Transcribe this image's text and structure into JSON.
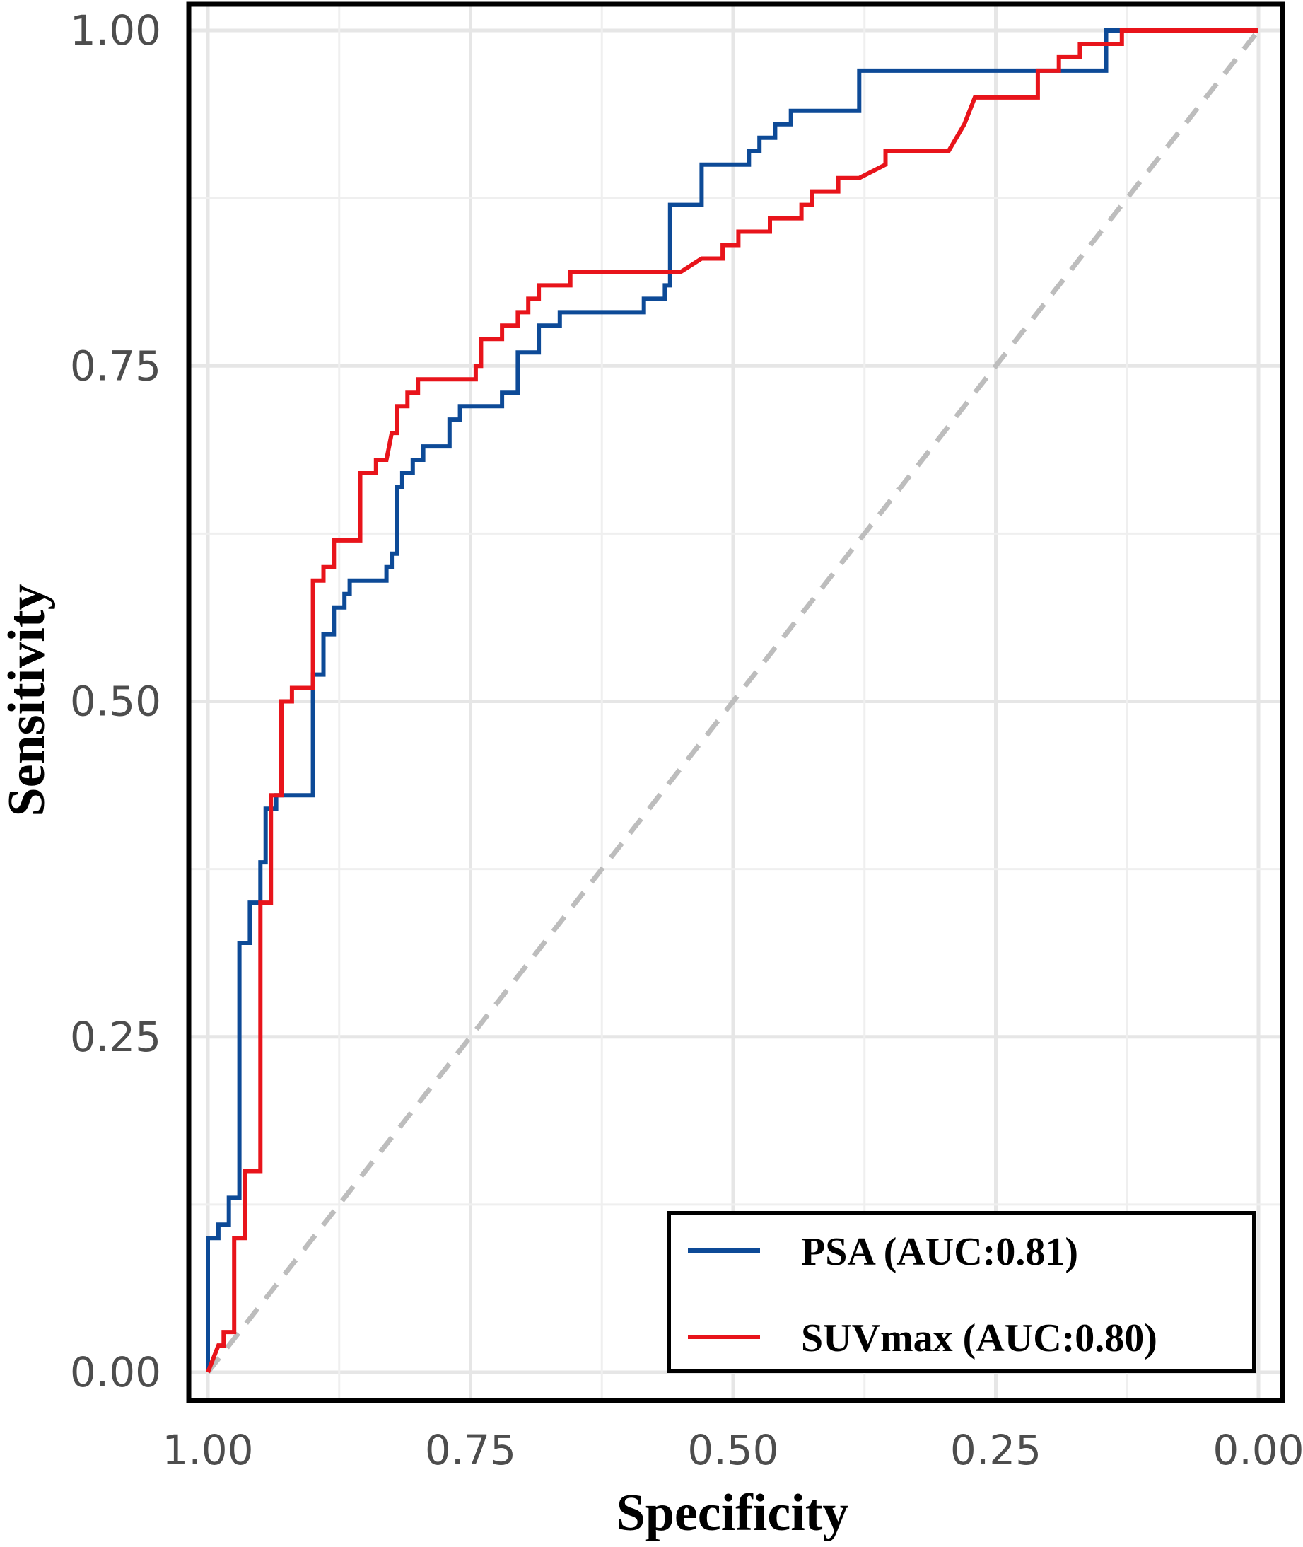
{
  "chart_data": {
    "type": "line",
    "title": "",
    "xlabel": "Specificity",
    "ylabel": "Sensitivity",
    "xlim": [
      1.0,
      0.0
    ],
    "ylim": [
      0.0,
      1.0
    ],
    "x_reversed": true,
    "grid": true,
    "x_ticks": [
      1.0,
      0.75,
      0.5,
      0.25,
      0.0
    ],
    "x_tick_labels": [
      "1.00",
      "0.75",
      "0.50",
      "0.25",
      "0.00"
    ],
    "y_ticks": [
      0.0,
      0.25,
      0.5,
      0.75,
      1.0
    ],
    "y_tick_labels": [
      "0.00",
      "0.25",
      "0.50",
      "0.75",
      "1.00"
    ],
    "legend_position": "bottom-right",
    "reference_line": {
      "name": "chance",
      "from": [
        1.0,
        0.0
      ],
      "to": [
        0.0,
        1.0
      ],
      "color": "#bdbdbd",
      "style": "dashed"
    },
    "series": [
      {
        "name": "PSA",
        "label": "PSA (AUC:0.81)",
        "auc": 0.81,
        "color": "#0d4a97",
        "points": [
          [
            1.0,
            0.0
          ],
          [
            1.0,
            0.1
          ],
          [
            0.99,
            0.1
          ],
          [
            0.99,
            0.11
          ],
          [
            0.98,
            0.11
          ],
          [
            0.98,
            0.13
          ],
          [
            0.97,
            0.13
          ],
          [
            0.97,
            0.32
          ],
          [
            0.96,
            0.32
          ],
          [
            0.96,
            0.35
          ],
          [
            0.95,
            0.35
          ],
          [
            0.95,
            0.38
          ],
          [
            0.945,
            0.38
          ],
          [
            0.945,
            0.42
          ],
          [
            0.935,
            0.42
          ],
          [
            0.935,
            0.43
          ],
          [
            0.9,
            0.43
          ],
          [
            0.9,
            0.52
          ],
          [
            0.89,
            0.52
          ],
          [
            0.89,
            0.55
          ],
          [
            0.88,
            0.55
          ],
          [
            0.88,
            0.57
          ],
          [
            0.87,
            0.57
          ],
          [
            0.87,
            0.58
          ],
          [
            0.865,
            0.58
          ],
          [
            0.865,
            0.59
          ],
          [
            0.83,
            0.59
          ],
          [
            0.83,
            0.6
          ],
          [
            0.825,
            0.6
          ],
          [
            0.825,
            0.61
          ],
          [
            0.82,
            0.61
          ],
          [
            0.82,
            0.66
          ],
          [
            0.815,
            0.66
          ],
          [
            0.815,
            0.67
          ],
          [
            0.805,
            0.67
          ],
          [
            0.805,
            0.68
          ],
          [
            0.795,
            0.68
          ],
          [
            0.795,
            0.69
          ],
          [
            0.77,
            0.69
          ],
          [
            0.77,
            0.71
          ],
          [
            0.76,
            0.71
          ],
          [
            0.76,
            0.72
          ],
          [
            0.72,
            0.72
          ],
          [
            0.72,
            0.73
          ],
          [
            0.705,
            0.73
          ],
          [
            0.705,
            0.76
          ],
          [
            0.685,
            0.76
          ],
          [
            0.685,
            0.78
          ],
          [
            0.665,
            0.78
          ],
          [
            0.665,
            0.79
          ],
          [
            0.585,
            0.79
          ],
          [
            0.585,
            0.8
          ],
          [
            0.565,
            0.8
          ],
          [
            0.565,
            0.81
          ],
          [
            0.56,
            0.81
          ],
          [
            0.56,
            0.87
          ],
          [
            0.53,
            0.87
          ],
          [
            0.53,
            0.9
          ],
          [
            0.485,
            0.9
          ],
          [
            0.485,
            0.91
          ],
          [
            0.475,
            0.91
          ],
          [
            0.475,
            0.92
          ],
          [
            0.46,
            0.92
          ],
          [
            0.46,
            0.93
          ],
          [
            0.445,
            0.93
          ],
          [
            0.445,
            0.94
          ],
          [
            0.38,
            0.94
          ],
          [
            0.38,
            0.97
          ],
          [
            0.145,
            0.97
          ],
          [
            0.145,
            1.0
          ],
          [
            0.0,
            1.0
          ]
        ]
      },
      {
        "name": "SUVmax",
        "label": "SUVmax (AUC:0.80)",
        "auc": 0.8,
        "color": "#e8141b",
        "points": [
          [
            1.0,
            0.0
          ],
          [
            0.995,
            0.01
          ],
          [
            0.99,
            0.02
          ],
          [
            0.985,
            0.02
          ],
          [
            0.985,
            0.03
          ],
          [
            0.975,
            0.03
          ],
          [
            0.975,
            0.1
          ],
          [
            0.965,
            0.1
          ],
          [
            0.965,
            0.15
          ],
          [
            0.95,
            0.15
          ],
          [
            0.95,
            0.35
          ],
          [
            0.94,
            0.35
          ],
          [
            0.94,
            0.43
          ],
          [
            0.93,
            0.43
          ],
          [
            0.93,
            0.5
          ],
          [
            0.92,
            0.5
          ],
          [
            0.92,
            0.51
          ],
          [
            0.9,
            0.51
          ],
          [
            0.9,
            0.59
          ],
          [
            0.89,
            0.59
          ],
          [
            0.89,
            0.6
          ],
          [
            0.88,
            0.6
          ],
          [
            0.88,
            0.62
          ],
          [
            0.855,
            0.62
          ],
          [
            0.855,
            0.67
          ],
          [
            0.84,
            0.67
          ],
          [
            0.84,
            0.68
          ],
          [
            0.83,
            0.68
          ],
          [
            0.825,
            0.7
          ],
          [
            0.82,
            0.7
          ],
          [
            0.82,
            0.72
          ],
          [
            0.81,
            0.72
          ],
          [
            0.81,
            0.73
          ],
          [
            0.8,
            0.73
          ],
          [
            0.8,
            0.74
          ],
          [
            0.745,
            0.74
          ],
          [
            0.745,
            0.75
          ],
          [
            0.74,
            0.75
          ],
          [
            0.74,
            0.77
          ],
          [
            0.72,
            0.77
          ],
          [
            0.72,
            0.78
          ],
          [
            0.705,
            0.78
          ],
          [
            0.705,
            0.79
          ],
          [
            0.695,
            0.79
          ],
          [
            0.695,
            0.8
          ],
          [
            0.685,
            0.8
          ],
          [
            0.685,
            0.81
          ],
          [
            0.655,
            0.81
          ],
          [
            0.655,
            0.82
          ],
          [
            0.55,
            0.82
          ],
          [
            0.53,
            0.83
          ],
          [
            0.51,
            0.83
          ],
          [
            0.51,
            0.84
          ],
          [
            0.495,
            0.84
          ],
          [
            0.495,
            0.85
          ],
          [
            0.465,
            0.85
          ],
          [
            0.465,
            0.86
          ],
          [
            0.435,
            0.86
          ],
          [
            0.435,
            0.87
          ],
          [
            0.425,
            0.87
          ],
          [
            0.425,
            0.88
          ],
          [
            0.4,
            0.88
          ],
          [
            0.4,
            0.89
          ],
          [
            0.38,
            0.89
          ],
          [
            0.355,
            0.9
          ],
          [
            0.355,
            0.91
          ],
          [
            0.295,
            0.91
          ],
          [
            0.28,
            0.93
          ],
          [
            0.27,
            0.95
          ],
          [
            0.21,
            0.95
          ],
          [
            0.21,
            0.97
          ],
          [
            0.19,
            0.97
          ],
          [
            0.19,
            0.98
          ],
          [
            0.17,
            0.98
          ],
          [
            0.17,
            0.99
          ],
          [
            0.13,
            0.99
          ],
          [
            0.13,
            1.0
          ],
          [
            0.0,
            1.0
          ]
        ]
      }
    ]
  }
}
